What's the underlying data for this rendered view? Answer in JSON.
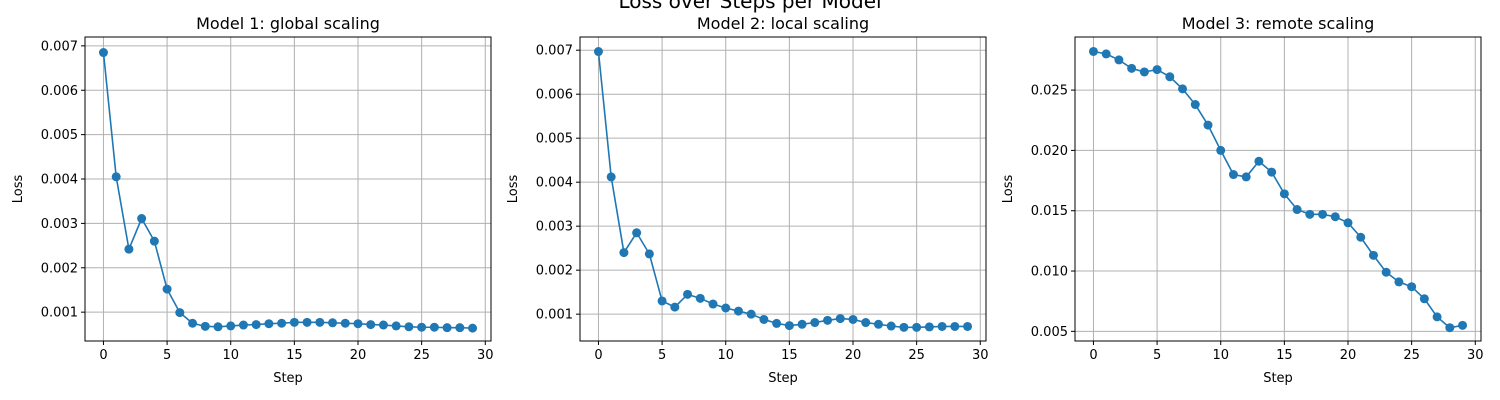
{
  "figure": {
    "suptitle": "Loss over Steps per Model"
  },
  "colors": {
    "series": "#1f77b4",
    "grid": "#b0b0b0"
  },
  "chart_data": [
    {
      "type": "line",
      "title": "Model 1: global scaling",
      "xlabel": "Step",
      "ylabel": "Loss",
      "grid": true,
      "xlim": [
        -1.45,
        30.45
      ],
      "ylim": [
        0.00035,
        0.0072
      ],
      "xticks": [
        0,
        5,
        10,
        15,
        20,
        25,
        30
      ],
      "yticks": [
        0.001,
        0.002,
        0.003,
        0.004,
        0.005,
        0.006,
        0.007
      ],
      "ytick_labels": [
        "0.001",
        "0.002",
        "0.003",
        "0.004",
        "0.005",
        "0.006",
        "0.007"
      ],
      "x": [
        0,
        1,
        2,
        3,
        4,
        5,
        6,
        7,
        8,
        9,
        10,
        11,
        12,
        13,
        14,
        15,
        16,
        17,
        18,
        19,
        20,
        21,
        22,
        23,
        24,
        25,
        26,
        27,
        28,
        29
      ],
      "values": [
        0.00685,
        0.00405,
        0.00242,
        0.00311,
        0.0026,
        0.00152,
        0.00099,
        0.00075,
        0.00068,
        0.00067,
        0.00069,
        0.00071,
        0.00072,
        0.00074,
        0.00075,
        0.00077,
        0.00077,
        0.00077,
        0.00076,
        0.00075,
        0.00074,
        0.00072,
        0.00071,
        0.00069,
        0.00067,
        0.00066,
        0.00066,
        0.00065,
        0.00065,
        0.00064
      ]
    },
    {
      "type": "line",
      "title": "Model 2: local scaling",
      "xlabel": "Step",
      "ylabel": "Loss",
      "grid": true,
      "xlim": [
        -1.45,
        30.45
      ],
      "ylim": [
        0.00039,
        0.0073
      ],
      "xticks": [
        0,
        5,
        10,
        15,
        20,
        25,
        30
      ],
      "yticks": [
        0.001,
        0.002,
        0.003,
        0.004,
        0.005,
        0.006,
        0.007
      ],
      "ytick_labels": [
        "0.001",
        "0.002",
        "0.003",
        "0.004",
        "0.005",
        "0.006",
        "0.007"
      ],
      "x": [
        0,
        1,
        2,
        3,
        4,
        5,
        6,
        7,
        8,
        9,
        10,
        11,
        12,
        13,
        14,
        15,
        16,
        17,
        18,
        19,
        20,
        21,
        22,
        23,
        24,
        25,
        26,
        27,
        28,
        29
      ],
      "values": [
        0.00697,
        0.00412,
        0.0024,
        0.00285,
        0.00237,
        0.0013,
        0.00116,
        0.00145,
        0.00136,
        0.00123,
        0.00114,
        0.00107,
        0.001,
        0.00088,
        0.00079,
        0.00074,
        0.00077,
        0.00081,
        0.00086,
        0.0009,
        0.00088,
        0.00081,
        0.00077,
        0.00073,
        0.0007,
        0.0007,
        0.00071,
        0.00072,
        0.00072,
        0.00072
      ]
    },
    {
      "type": "line",
      "title": "Model 3: remote scaling",
      "xlabel": "Step",
      "ylabel": "Loss",
      "grid": true,
      "xlim": [
        -1.45,
        30.45
      ],
      "ylim": [
        0.0042,
        0.0294
      ],
      "xticks": [
        0,
        5,
        10,
        15,
        20,
        25,
        30
      ],
      "yticks": [
        0.005,
        0.01,
        0.015,
        0.02,
        0.025
      ],
      "ytick_labels": [
        "0.005",
        "0.010",
        "0.015",
        "0.020",
        "0.025"
      ],
      "x": [
        0,
        1,
        2,
        3,
        4,
        5,
        6,
        7,
        8,
        9,
        10,
        11,
        12,
        13,
        14,
        15,
        16,
        17,
        18,
        19,
        20,
        21,
        22,
        23,
        24,
        25,
        26,
        27,
        28,
        29
      ],
      "values": [
        0.0282,
        0.028,
        0.0275,
        0.0268,
        0.0265,
        0.0267,
        0.0261,
        0.0251,
        0.0238,
        0.0221,
        0.02,
        0.018,
        0.0178,
        0.0191,
        0.0182,
        0.0164,
        0.0151,
        0.0147,
        0.0147,
        0.0145,
        0.014,
        0.0128,
        0.0113,
        0.0099,
        0.0091,
        0.0087,
        0.0077,
        0.0062,
        0.0053,
        0.0055
      ]
    }
  ]
}
